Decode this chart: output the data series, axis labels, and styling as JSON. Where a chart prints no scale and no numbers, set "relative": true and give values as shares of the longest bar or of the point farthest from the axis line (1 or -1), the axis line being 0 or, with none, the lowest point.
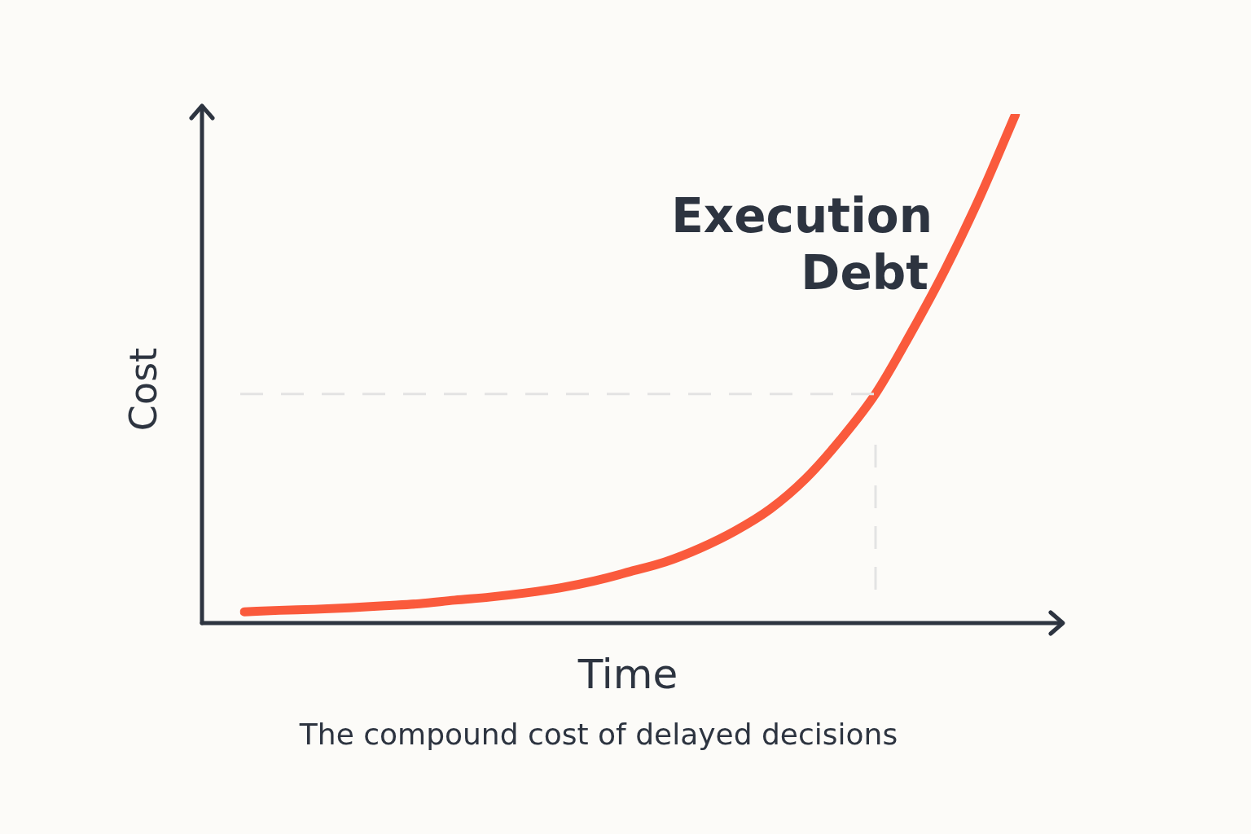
{
  "chart_data": {
    "type": "line",
    "relative": true,
    "xlabel": "Time",
    "ylabel": "Cost",
    "annotations": [
      "The compound cost of delayed decisions"
    ],
    "categories": [
      null,
      null,
      null,
      null,
      null,
      null,
      null,
      null,
      null,
      null,
      null,
      null,
      null,
      null,
      null,
      null,
      null,
      null,
      null,
      null,
      null,
      null,
      null
    ],
    "series": [
      {
        "name": "Execution Debt",
        "color": "#fa5a3c",
        "values": [
          0.022,
          0.025,
          0.027,
          0.03,
          0.034,
          0.038,
          0.045,
          0.051,
          0.059,
          0.069,
          0.083,
          0.101,
          0.12,
          0.147,
          0.181,
          0.224,
          0.283,
          0.36,
          0.45,
          0.568,
          0.696,
          0.84,
          1
        ]
      }
    ],
    "ref_lines": [
      {
        "axis": "y",
        "value": 0.45,
        "color": "#e3e3e3",
        "line_style": "dashed"
      }
    ],
    "legend": false,
    "marker": "none",
    "line_style": "solid"
  }
}
